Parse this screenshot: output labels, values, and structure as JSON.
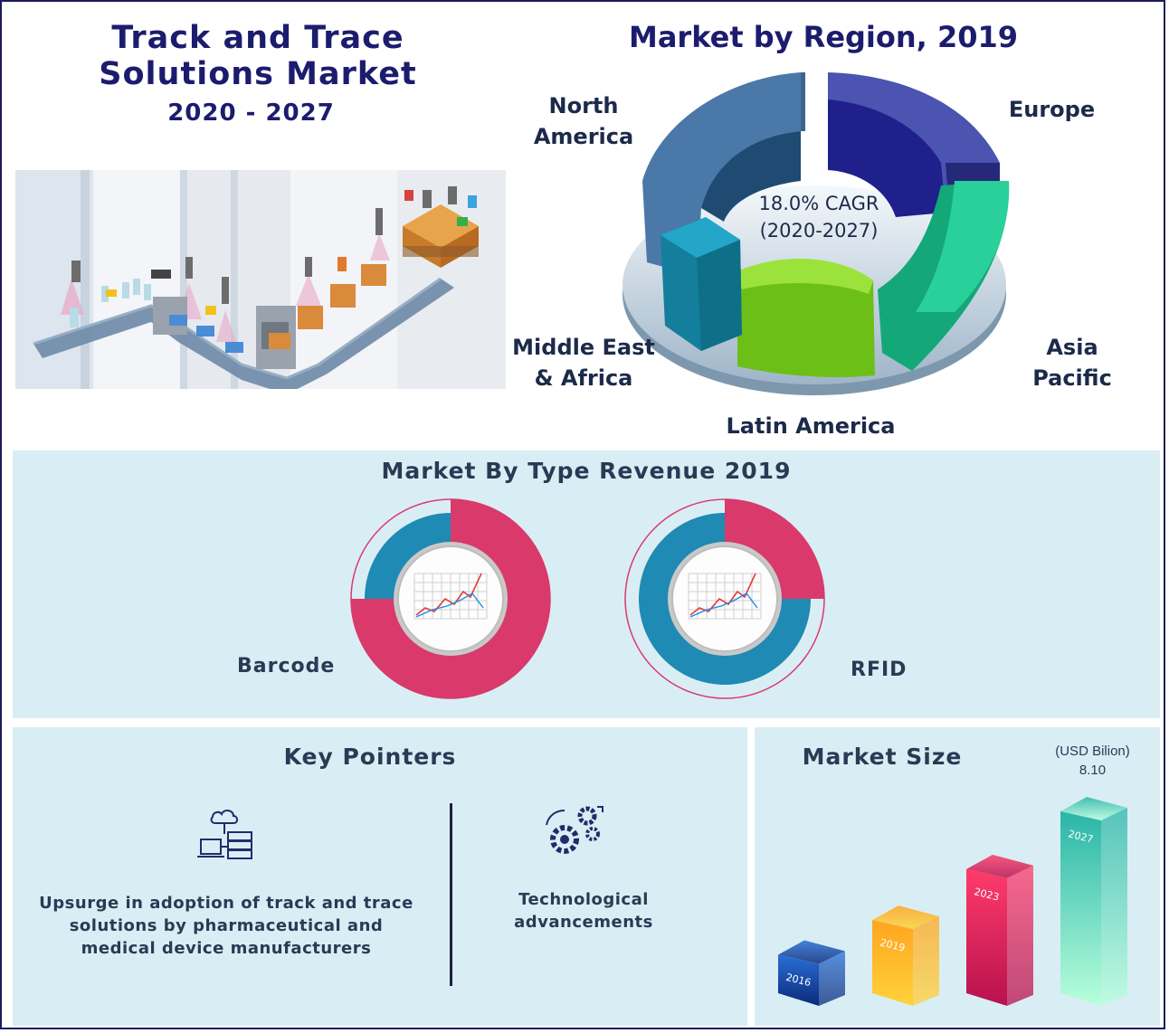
{
  "header": {
    "title_line1": "Track and Trace",
    "title_line2": "Solutions Market",
    "years": "2020 - 2027"
  },
  "region_chart": {
    "title": "Market by Region, 2019",
    "cagr_line1": "18.0% CAGR",
    "cagr_line2": "(2020-2027)",
    "regions": {
      "north_america_line1": "North",
      "north_america_line2": "America",
      "europe": "Europe",
      "asia_pacific": "Asia Pacific",
      "latin_america": "Latin America",
      "mea_line1": "Middle East",
      "mea_line2": "& Africa"
    },
    "colors": {
      "north_america": "#4a78a8",
      "europe": "#2f2f9e",
      "asia_pacific": "#1dbf8a",
      "latin_america": "#7ed321",
      "mea": "#1a96b8"
    }
  },
  "type_chart": {
    "title": "Market By Type Revenue 2019",
    "barcode_label": "Barcode",
    "rfid_label": "RFID",
    "colors": {
      "primary": "#d93a6b",
      "secondary": "#1f8ab3"
    }
  },
  "key_pointers": {
    "title": "Key Pointers",
    "pointer1_line1": "Upsurge in adoption of track and trace",
    "pointer1_line2": "solutions by pharmaceutical and",
    "pointer1_line3": "medical device manufacturers",
    "pointer1_icon": "cloud-server-icon",
    "pointer2_line1": "Technological",
    "pointer2_line2": "advancements",
    "pointer2_icon": "gears-icon"
  },
  "market_size": {
    "title": "Market Size",
    "unit": "(USD Bilion)",
    "value_2027": "8.10"
  },
  "chart_data": [
    {
      "type": "pie",
      "title": "Market by Region, 2019",
      "categories": [
        "North America",
        "Europe",
        "Asia Pacific",
        "Latin America",
        "Middle East & Africa"
      ],
      "values": [
        26,
        21,
        24,
        17,
        12
      ],
      "annotation": "18.0% CAGR (2020-2027)"
    },
    {
      "type": "pie",
      "title": "Market By Type Revenue 2019",
      "categories": [
        "Barcode",
        "RFID"
      ],
      "series": [
        {
          "name": "Barcode",
          "values": [
            75,
            25
          ]
        },
        {
          "name": "RFID",
          "values": [
            25,
            75
          ]
        }
      ]
    },
    {
      "type": "bar",
      "title": "Market Size",
      "ylabel": "(USD Bilion)",
      "categories": [
        "2016",
        "2019",
        "2023",
        "2027"
      ],
      "values": [
        1.9,
        3.4,
        5.6,
        8.1
      ],
      "data_labels": {
        "2027": "8.10"
      }
    }
  ]
}
